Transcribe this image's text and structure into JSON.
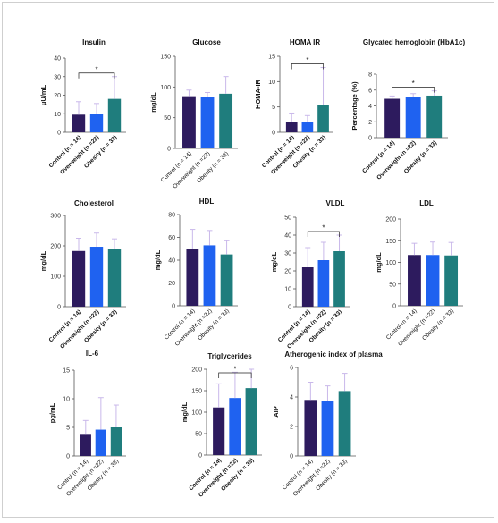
{
  "colors": {
    "control": "#2d1b5e",
    "overweight": "#1f62f0",
    "obesity": "#1f7d7d",
    "error_bar": "#c9b8ea",
    "axis": "#555555"
  },
  "chart_data": [
    {
      "type": "bar",
      "title": "Insulin",
      "ylabel": "μU/mL",
      "ylim": [
        0,
        40
      ],
      "yticks": [
        "0",
        "10",
        "20",
        "30",
        "40"
      ],
      "categories": [
        "Control (n = 14)",
        "Overweight (n =22)",
        "Obesity (n = 33)"
      ],
      "values": [
        9.5,
        10,
        18
      ],
      "errors": [
        7,
        5.5,
        12
      ],
      "significance": "*",
      "bold_labels": true
    },
    {
      "type": "bar",
      "title": "Glucose",
      "ylabel": "mg/dL",
      "ylim": [
        0,
        150
      ],
      "yticks": [
        "0",
        "50",
        "100",
        "150"
      ],
      "categories": [
        "Control (n = 14)",
        "Overweight (n =22)",
        "Obesity (n = 33)"
      ],
      "values": [
        85,
        83,
        89
      ],
      "errors": [
        10,
        8,
        28
      ],
      "significance": "",
      "bold_labels": false
    },
    {
      "type": "bar",
      "title": "HOMA IR",
      "ylabel": "HOMA-IR",
      "ylim": [
        0,
        15
      ],
      "yticks": [
        "0",
        "5",
        "10",
        "15"
      ],
      "categories": [
        "Control (n = 14)",
        "Overweight (n =22)",
        "Obesity (n = 33)"
      ],
      "values": [
        2.1,
        2.1,
        5.3
      ],
      "errors": [
        1.7,
        1.2,
        7.5
      ],
      "significance": "*",
      "bold_labels": true
    },
    {
      "type": "bar",
      "title": "Glycated hemoglobin (HbA1c)",
      "ylabel": "Percentage (%)",
      "ylim": [
        0,
        8
      ],
      "yticks": [
        "0",
        "2",
        "4",
        "6",
        "8"
      ],
      "categories": [
        "Control (n = 14)",
        "Overweight (n =22)",
        "Obesity (n = 33)"
      ],
      "values": [
        4.9,
        5.1,
        5.3
      ],
      "errors": [
        0.35,
        0.45,
        0.6
      ],
      "significance": "*",
      "bold_labels": true
    },
    {
      "type": "bar",
      "title": "Cholesterol",
      "ylabel": "mg/dL",
      "ylim": [
        0,
        300
      ],
      "yticks": [
        "0",
        "100",
        "200",
        "300"
      ],
      "categories": [
        "Control (n = 14)",
        "Overweight (n =22)",
        "Obesity (n = 33)"
      ],
      "values": [
        183,
        197,
        191
      ],
      "errors": [
        42,
        45,
        32
      ],
      "significance": "",
      "bold_labels": true
    },
    {
      "type": "bar",
      "title": "HDL",
      "ylabel": "mg/dL",
      "ylim": [
        0,
        80
      ],
      "yticks": [
        "0",
        "20",
        "40",
        "60",
        "80"
      ],
      "categories": [
        "Control (n = 14)",
        "Overweight (n =22)",
        "Obesity (n = 33)"
      ],
      "values": [
        50,
        53,
        45
      ],
      "errors": [
        17,
        13,
        12
      ],
      "significance": "",
      "bold_labels": false
    },
    {
      "type": "bar",
      "title": "VLDL",
      "ylabel": "mg/dL",
      "ylim": [
        0,
        50
      ],
      "yticks": [
        "0",
        "10",
        "20",
        "30",
        "40",
        "50"
      ],
      "categories": [
        "Control (n = 14)",
        "Overweight (n =22)",
        "Obesity (n = 33)"
      ],
      "values": [
        22,
        26,
        31
      ],
      "errors": [
        11,
        10,
        9
      ],
      "significance": "*",
      "bold_labels": true
    },
    {
      "type": "bar",
      "title": "LDL",
      "ylabel": "mg/dL",
      "ylim": [
        0,
        200
      ],
      "yticks": [
        "0",
        "50",
        "100",
        "150",
        "200"
      ],
      "categories": [
        "Control (n = 14)",
        "Overweight (n =22)",
        "Obesity (n = 33)"
      ],
      "values": [
        117,
        117,
        116
      ],
      "errors": [
        27,
        30,
        30
      ],
      "significance": "",
      "bold_labels": false
    },
    {
      "type": "bar",
      "title": "IL-6",
      "ylabel": "pg/mL",
      "ylim": [
        0,
        15
      ],
      "yticks": [
        "0",
        "5",
        "10",
        "15"
      ],
      "categories": [
        "Control (n = 14)",
        "Overweight (n =22)",
        "Obesity (n = 33)"
      ],
      "values": [
        3.7,
        4.6,
        5.0
      ],
      "errors": [
        2.5,
        5.6,
        3.9
      ],
      "significance": "",
      "bold_labels": false
    },
    {
      "type": "bar",
      "title": "Triglycerides",
      "ylabel": "mg/dL",
      "ylim": [
        0,
        200
      ],
      "yticks": [
        "0",
        "50",
        "100",
        "150",
        "200"
      ],
      "categories": [
        "Control (n = 14)",
        "Overweight (n =22)",
        "Obesity (n = 33)"
      ],
      "values": [
        111,
        133,
        156
      ],
      "errors": [
        55,
        60,
        45
      ],
      "significance": "*",
      "bold_labels": true
    },
    {
      "type": "bar",
      "title": "Atherogenic index of plasma",
      "ylabel": "AIP",
      "ylim": [
        0,
        6
      ],
      "yticks": [
        "0",
        "2",
        "4",
        "6"
      ],
      "categories": [
        "Control (n = 14)",
        "Overweight (n =22)",
        "Obesity (n = 33)"
      ],
      "values": [
        3.8,
        3.75,
        4.4
      ],
      "errors": [
        1.2,
        1.0,
        1.2
      ],
      "significance": "",
      "bold_labels": false
    }
  ]
}
